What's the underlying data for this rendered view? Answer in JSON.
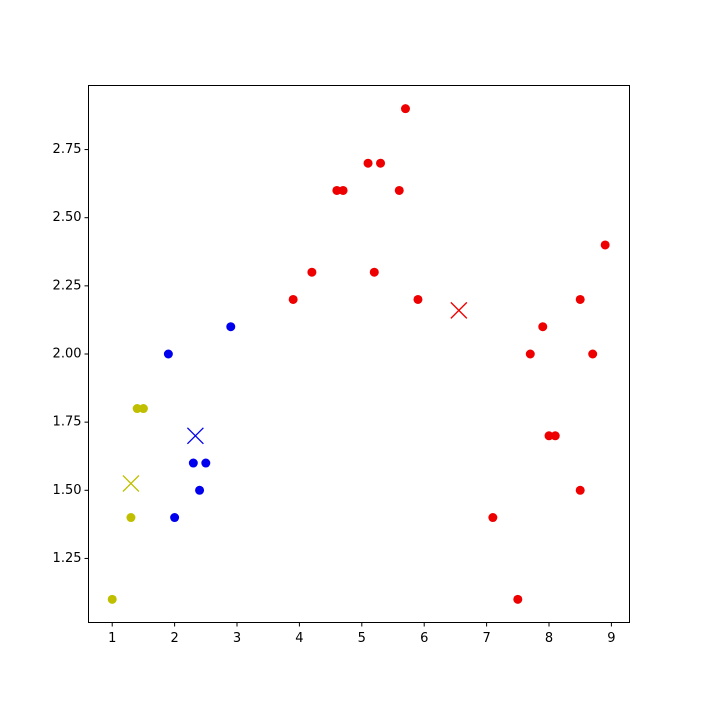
{
  "chart_data": {
    "type": "scatter",
    "xlim": [
      0.62,
      9.29
    ],
    "ylim": [
      1.015,
      2.985
    ],
    "xticks": [
      1,
      2,
      3,
      4,
      5,
      6,
      7,
      8,
      9
    ],
    "yticks": [
      1.25,
      {
        "value": 1.5,
        "label": "1.50"
      },
      1.75,
      {
        "value": 2.0,
        "label": "2.00"
      },
      2.25,
      {
        "value": 2.5,
        "label": "2.50"
      },
      2.75
    ],
    "grid": false,
    "series": [
      {
        "color": "#bfbf00",
        "marker": "o",
        "x": [
          1.0,
          1.3,
          1.4,
          1.5
        ],
        "values": [
          1.1,
          1.4,
          1.8,
          1.8
        ]
      },
      {
        "color": "#0000ee",
        "marker": "o",
        "x": [
          1.9,
          2.9,
          2.3,
          2.5,
          2.4,
          2.0
        ],
        "values": [
          2.0,
          2.1,
          1.6,
          1.6,
          1.5,
          1.4
        ]
      },
      {
        "color": "#ee0000",
        "marker": "o",
        "x": [
          5.7,
          5.1,
          5.3,
          4.6,
          4.7,
          5.6,
          8.9,
          4.2,
          5.2,
          3.9,
          5.9,
          8.5,
          7.9,
          7.7,
          8.7,
          8.0,
          8.1,
          8.5,
          7.1,
          7.5
        ],
        "values": [
          2.9,
          2.7,
          2.7,
          2.6,
          2.6,
          2.6,
          2.4,
          2.3,
          2.3,
          2.2,
          2.2,
          2.2,
          2.1,
          2.0,
          2.0,
          1.7,
          1.7,
          1.5,
          1.4,
          1.1
        ]
      },
      {
        "color": "#bfbf00",
        "marker": "x",
        "x": [
          1.3
        ],
        "values": [
          1.525
        ]
      },
      {
        "color": "#0000ee",
        "marker": "x",
        "x": [
          2.333
        ],
        "values": [
          1.7
        ]
      },
      {
        "color": "#ee0000",
        "marker": "x",
        "x": [
          6.555
        ],
        "values": [
          2.16
        ]
      }
    ]
  }
}
